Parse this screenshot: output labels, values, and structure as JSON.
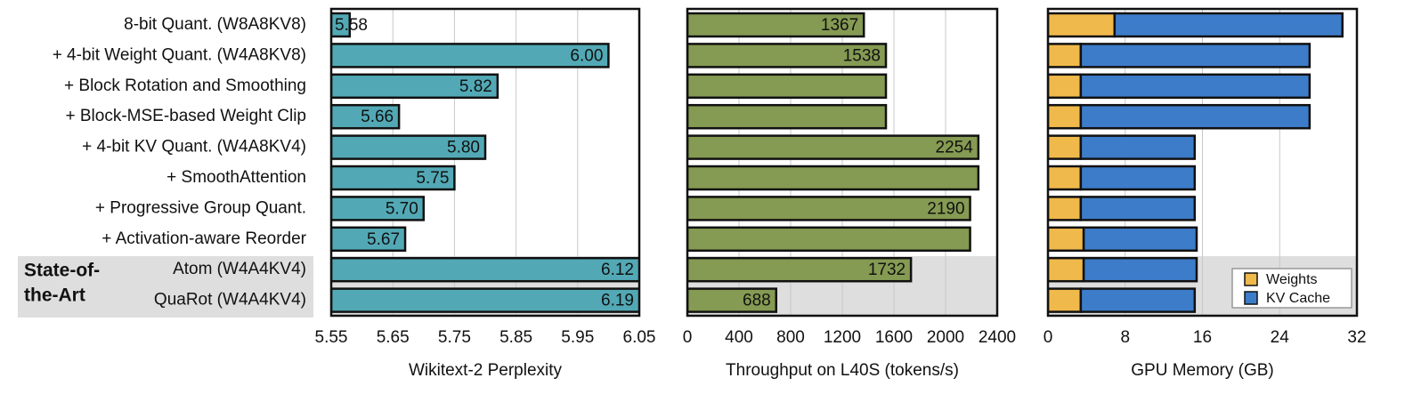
{
  "chart_data": [
    {
      "type": "bar",
      "xlabel": "Wikitext-2 Perplexity",
      "categories": [
        "8-bit Quant. (W8A8KV8)",
        "+ 4-bit Weight Quant. (W4A8KV8)",
        "+ Block Rotation and Smoothing",
        "+ Block-MSE-based Weight Clip",
        "+ 4-bit KV Quant. (W4A8KV4)",
        "+ SmoothAttention",
        "+ Progressive Group Quant.",
        "+ Activation-aware Reorder",
        "Atom (W4A4KV4)",
        "QuaRot (W4A4KV4)"
      ],
      "group_label": [
        "State-of-",
        "the-Art"
      ],
      "values": [
        5.58,
        6.0,
        5.82,
        5.66,
        5.8,
        5.75,
        5.7,
        5.67,
        6.12,
        6.19
      ],
      "value_labels": [
        "5.58",
        "6.00",
        "5.82",
        "5.66",
        "5.80",
        "5.75",
        "5.70",
        "5.67",
        "6.12",
        "6.19"
      ],
      "color": "#52a9b5",
      "xlim": [
        5.55,
        6.05
      ],
      "xticks": [
        5.55,
        5.65,
        5.75,
        5.85,
        5.95,
        6.05
      ],
      "grid": true
    },
    {
      "type": "bar",
      "xlabel": "Throughput on L40S (tokens/s)",
      "values": [
        1367,
        1538,
        1538,
        1538,
        2254,
        2254,
        2190,
        2190,
        1732,
        688
      ],
      "value_labels": [
        "1367",
        "1538",
        null,
        null,
        "2254",
        null,
        "2190",
        null,
        "1732",
        "688"
      ],
      "color": "#859a52",
      "xlim": [
        0,
        2400
      ],
      "xticks": [
        0,
        400,
        800,
        1200,
        1600,
        2000,
        2400
      ],
      "grid": true
    },
    {
      "type": "stacked_bar",
      "xlabel": "GPU Memory (GB)",
      "series": [
        {
          "name": "Weights",
          "color": "#f0b94b",
          "values": [
            6.9,
            3.4,
            3.4,
            3.4,
            3.4,
            3.4,
            3.4,
            3.7,
            3.7,
            3.4
          ]
        },
        {
          "name": "KV Cache",
          "color": "#3d7cc9",
          "values": [
            23.6,
            23.7,
            23.7,
            23.7,
            11.8,
            11.8,
            11.8,
            11.7,
            11.7,
            11.8
          ]
        }
      ],
      "xlim": [
        0,
        32
      ],
      "xticks": [
        0,
        8,
        16,
        24,
        32
      ],
      "grid": true,
      "legend": "lower right"
    }
  ]
}
